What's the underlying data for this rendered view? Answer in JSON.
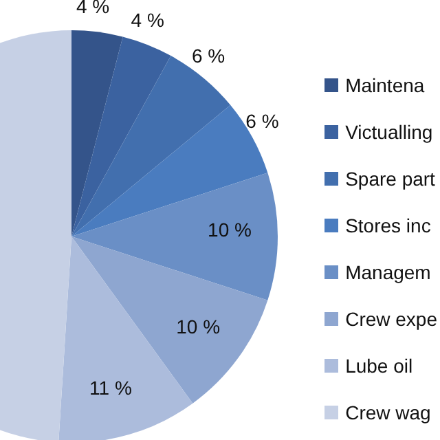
{
  "chart_data": {
    "type": "pie",
    "categories": [
      "Maintena",
      "Victualling",
      "Spare part",
      "Stores inc",
      "Managem",
      "Crew expe",
      "Lube oil",
      "Crew wag"
    ],
    "values": [
      4,
      4,
      6,
      6,
      10,
      10,
      11,
      49
    ],
    "value_labels": [
      "4 %",
      "4 %",
      "6 %",
      "6 %",
      "10 %",
      "10 %",
      "11 %",
      null
    ],
    "colors": [
      "#34548a",
      "#3b62a0",
      "#426fae",
      "#4a7cbf",
      "#6a8fc6",
      "#8ea6d0",
      "#acbcdc",
      "#c6d0e5"
    ],
    "legend": "right"
  }
}
